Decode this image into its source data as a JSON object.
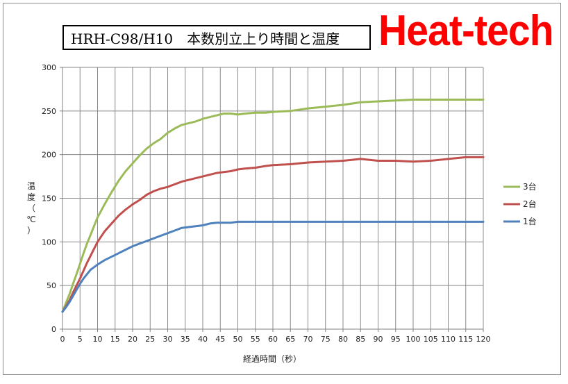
{
  "title": "HRH-C98/H10　本数別立上り時間と温度",
  "brand": "Heat-tech",
  "chart_data": {
    "type": "line",
    "xlabel": "経過時間（秒）",
    "ylabel_chars": [
      "温",
      "度",
      "（",
      "℃",
      "）"
    ],
    "xlim": [
      0,
      120
    ],
    "ylim": [
      0,
      300
    ],
    "xticks": [
      0,
      5,
      10,
      15,
      20,
      25,
      30,
      35,
      40,
      45,
      50,
      55,
      60,
      65,
      70,
      75,
      80,
      85,
      90,
      95,
      100,
      105,
      110,
      115,
      120
    ],
    "yticks": [
      0,
      50,
      100,
      150,
      200,
      250,
      300
    ],
    "grid": true,
    "legend_position": "right",
    "x": [
      0,
      1,
      2,
      3,
      4,
      5,
      6,
      7,
      8,
      9,
      10,
      12,
      14,
      16,
      18,
      20,
      22,
      24,
      26,
      28,
      30,
      32,
      34,
      36,
      38,
      40,
      42,
      44,
      46,
      48,
      50,
      52,
      55,
      58,
      60,
      65,
      70,
      75,
      80,
      85,
      90,
      95,
      100,
      105,
      110,
      115,
      120
    ],
    "series": [
      {
        "name": "3台",
        "color": "#9bbb59",
        "values": [
          20,
          30,
          40,
          52,
          63,
          75,
          87,
          98,
          108,
          118,
          128,
          143,
          157,
          170,
          181,
          190,
          199,
          207,
          213,
          218,
          225,
          230,
          234,
          236,
          238,
          241,
          243,
          245,
          247,
          247,
          246,
          247,
          248,
          248,
          249,
          250,
          253,
          255,
          257,
          260,
          261,
          262,
          263,
          263,
          263,
          263,
          263
        ]
      },
      {
        "name": "2台",
        "color": "#c0504d",
        "values": [
          20,
          26,
          33,
          42,
          50,
          58,
          67,
          76,
          84,
          92,
          100,
          112,
          121,
          130,
          137,
          143,
          148,
          154,
          158,
          161,
          163,
          166,
          169,
          171,
          173,
          175,
          177,
          179,
          180,
          181,
          183,
          184,
          185,
          187,
          188,
          189,
          191,
          192,
          193,
          195,
          193,
          193,
          192,
          193,
          195,
          197,
          197
        ]
      },
      {
        "name": "1台",
        "color": "#4f81bd",
        "values": [
          20,
          25,
          31,
          38,
          45,
          52,
          58,
          63,
          68,
          71,
          74,
          79,
          83,
          87,
          91,
          95,
          98,
          101,
          104,
          107,
          110,
          113,
          116,
          117,
          118,
          119,
          121,
          122,
          122,
          122,
          123,
          123,
          123,
          123,
          123,
          123,
          123,
          123,
          123,
          123,
          123,
          123,
          123,
          123,
          123,
          123,
          123
        ]
      }
    ]
  }
}
